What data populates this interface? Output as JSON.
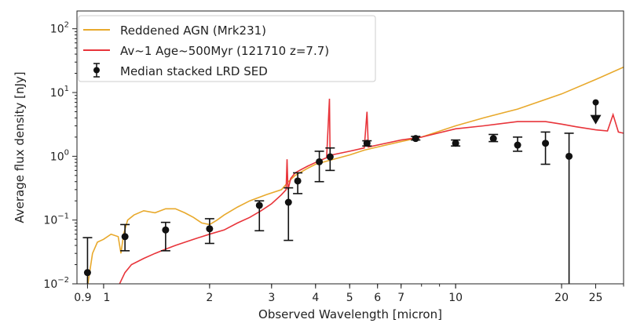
{
  "chart_data": {
    "type": "line",
    "xlabel": "Observed Wavelength [micron]",
    "ylabel": "Average flux density [nJy]",
    "xscale": "log",
    "yscale": "log",
    "xlim": [
      0.84,
      30
    ],
    "ylim": [
      0.01,
      190
    ],
    "grid": false,
    "legend_position": "top-left",
    "x_ticks": [
      0.9,
      1,
      2,
      3,
      4,
      5,
      6,
      7,
      10,
      20,
      25
    ],
    "x_tick_labels": [
      "0.9",
      "1",
      "2",
      "3",
      "4",
      "5",
      "6",
      "7",
      "10",
      "20",
      "25"
    ],
    "y_ticks": [
      0.01,
      0.1,
      1,
      10,
      100
    ],
    "y_tick_labels": [
      {
        "base": "10",
        "exp": "−2"
      },
      {
        "base": "10",
        "exp": "−1"
      },
      {
        "base": "10",
        "exp": "0"
      },
      {
        "base": "10",
        "exp": "1"
      },
      {
        "base": "10",
        "exp": "2"
      }
    ],
    "series": [
      {
        "name": "Reddened AGN (Mrk231)",
        "kind": "line",
        "color": "#e8a92c",
        "x": [
          0.9,
          0.93,
          0.96,
          1.0,
          1.05,
          1.1,
          1.12,
          1.14,
          1.17,
          1.22,
          1.3,
          1.4,
          1.5,
          1.6,
          1.7,
          1.8,
          1.9,
          2.0,
          2.1,
          2.2,
          2.4,
          2.6,
          2.9,
          3.2,
          3.35,
          3.5,
          3.8,
          4.0,
          4.5,
          5.0,
          5.5,
          6.0,
          7.0,
          8.0,
          10,
          12,
          15,
          20,
          25,
          30
        ],
        "y": [
          0.009,
          0.03,
          0.045,
          0.05,
          0.06,
          0.055,
          0.03,
          0.06,
          0.1,
          0.12,
          0.14,
          0.13,
          0.15,
          0.15,
          0.13,
          0.11,
          0.09,
          0.085,
          0.1,
          0.12,
          0.16,
          0.2,
          0.25,
          0.3,
          0.4,
          0.5,
          0.65,
          0.75,
          0.9,
          1.05,
          1.25,
          1.4,
          1.7,
          2.0,
          3.0,
          4.0,
          5.5,
          9.5,
          16,
          25
        ]
      },
      {
        "name": "Av~1 Age~500Myr (121710 z=7.7)",
        "kind": "line",
        "color": "#e8343a",
        "x": [
          1.1,
          1.15,
          1.2,
          1.3,
          1.4,
          1.5,
          1.6,
          1.8,
          2.0,
          2.2,
          2.4,
          2.6,
          2.8,
          3.0,
          3.2,
          3.3,
          3.32,
          3.34,
          3.4,
          3.5,
          3.6,
          3.8,
          4.0,
          4.3,
          4.38,
          4.4,
          4.45,
          5.0,
          5.5,
          5.6,
          5.65,
          6.0,
          7.0,
          8.0,
          10,
          12,
          15,
          18,
          20,
          22,
          25,
          27,
          28,
          29,
          30
        ],
        "y": [
          0.009,
          0.015,
          0.02,
          0.025,
          0.03,
          0.035,
          0.04,
          0.05,
          0.06,
          0.07,
          0.09,
          0.11,
          0.14,
          0.18,
          0.25,
          0.3,
          0.9,
          0.3,
          0.45,
          0.55,
          0.6,
          0.7,
          0.8,
          0.95,
          8,
          1.0,
          1.05,
          1.2,
          1.35,
          5,
          1.4,
          1.5,
          1.8,
          2.0,
          2.7,
          3.0,
          3.5,
          3.5,
          3.2,
          2.9,
          2.6,
          2.5,
          4.5,
          2.4,
          2.3
        ]
      },
      {
        "name": "Median stacked LRD SED",
        "kind": "errorbar",
        "color": "#111111",
        "x": [
          0.9,
          1.15,
          1.5,
          2.0,
          2.77,
          3.35,
          3.56,
          4.1,
          4.4,
          5.6,
          7.7,
          10,
          12.8,
          15,
          18,
          21
        ],
        "y": [
          0.015,
          0.055,
          0.07,
          0.073,
          0.17,
          0.19,
          0.41,
          0.82,
          0.98,
          1.6,
          1.9,
          1.6,
          1.9,
          1.5,
          1.6,
          1.0
        ],
        "y_upper": [
          0.053,
          0.085,
          0.092,
          0.105,
          0.2,
          0.32,
          0.55,
          1.2,
          1.35,
          1.75,
          2.05,
          1.8,
          2.2,
          2.0,
          2.4,
          2.3
        ],
        "y_lower": [
          0.008,
          0.033,
          0.033,
          0.043,
          0.068,
          0.048,
          0.26,
          0.4,
          0.6,
          1.45,
          1.8,
          1.45,
          1.7,
          1.2,
          0.75,
          0.008
        ],
        "upper_limit": {
          "x": 25,
          "y": 7.0
        }
      }
    ]
  }
}
